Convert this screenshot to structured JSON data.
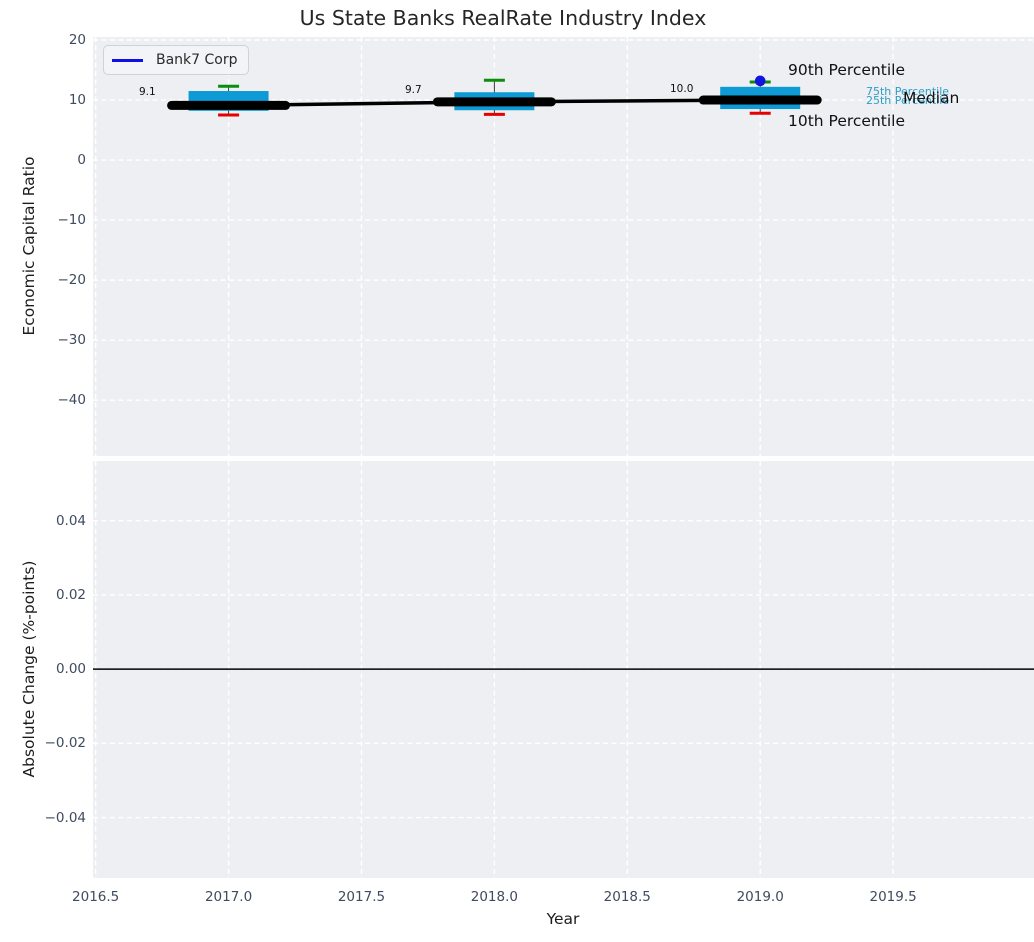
{
  "title": "Us State Banks RealRate Industry Index",
  "legend": {
    "label": "Bank7 Corp",
    "line_color": "#1010e6"
  },
  "colors": {
    "axes_background": "#edeff2",
    "grid": "#ffffff",
    "box_fill": "#0e9ad4",
    "whisker": "#3c3c3c",
    "cap_90th": "#0b8e0b",
    "cap_10th": "#e60000",
    "median_line": "#000000",
    "bank_marker": "#1414e0",
    "tick_text": "#3f4b5e",
    "axis_label_text": "#1c1c1c",
    "percentile_label_cyan": "#2d9dc9",
    "annotation_text": "#111111",
    "zero_line": "#000000",
    "title_text": "#262626"
  },
  "chart_data": [
    {
      "type": "boxplot-line",
      "title": "Us State Banks RealRate Industry Index",
      "ylabel": "Economic Capital Ratio",
      "x": [
        2017,
        2018,
        2019
      ],
      "series": {
        "median": [
          9.1,
          9.7,
          10.0
        ],
        "p75": [
          11.5,
          11.3,
          12.2
        ],
        "p25": [
          8.2,
          8.3,
          8.5
        ],
        "p90": [
          12.3,
          13.3,
          13.0
        ],
        "p10": [
          7.5,
          7.6,
          7.8
        ]
      },
      "bank7_point": {
        "x": 2019,
        "y": 13.2
      },
      "median_labels": [
        "9.1",
        "9.7",
        "10.0"
      ],
      "annotations": {
        "p90": "90th Percentile",
        "p75": "75th Percentile",
        "p25": "25th Percentile",
        "median": "Median",
        "p10": "10th Percentile"
      },
      "yticks": [
        20,
        10,
        0,
        -10,
        -20,
        -30,
        -40
      ],
      "ytick_labels": [
        "20",
        "10",
        "0",
        "−10",
        "−20",
        "−30",
        "−40"
      ],
      "xticks": [
        2016.5,
        2017,
        2017.5,
        2018,
        2018.5,
        2019,
        2019.5
      ],
      "xtick_labels": [
        "2016.5",
        "2017.0",
        "2017.5",
        "2018.0",
        "2018.5",
        "2019.0",
        "2019.5"
      ],
      "xlim": [
        2016.49,
        2020.03
      ],
      "ylim": [
        -49.3,
        20.5
      ],
      "grid": "white-dashed",
      "legend_position": "upper-left"
    },
    {
      "type": "line",
      "ylabel": "Absolute Change (%-points)",
      "xlabel": "Year",
      "yticks": [
        0.04,
        0.02,
        0,
        -0.02,
        -0.04
      ],
      "ytick_labels": [
        "0.04",
        "0.02",
        "0.00",
        "−0.02",
        "−0.04"
      ],
      "xticks": [
        2016.5,
        2017,
        2017.5,
        2018,
        2018.5,
        2019,
        2019.5
      ],
      "xtick_labels": [
        "2016.5",
        "2017.0",
        "2017.5",
        "2018.0",
        "2018.5",
        "2019.0",
        "2019.5"
      ],
      "zero_line_y": 0.0,
      "xlim": [
        2016.49,
        2020.03
      ],
      "ylim": [
        -0.0563,
        0.0561
      ],
      "grid": "white-dashed"
    }
  ]
}
